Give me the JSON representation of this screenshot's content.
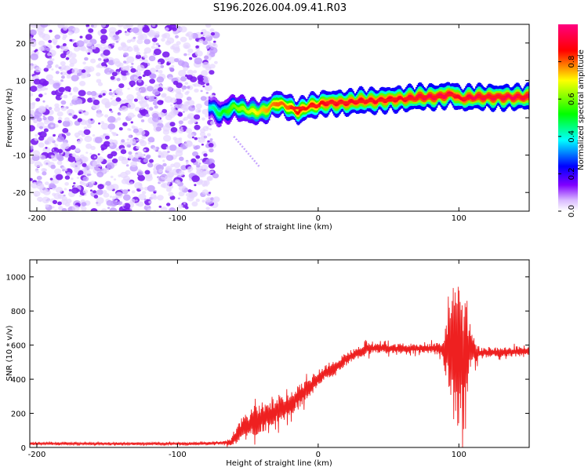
{
  "figure_title": "S196.2026.004.09.41.R03",
  "chart_data": [
    {
      "type": "heatmap",
      "title": "S196.2026.004.09.41.R03",
      "xlabel": "Height of straight line (km)",
      "ylabel": "Frequency (Hz)",
      "xlim": [
        -205,
        150
      ],
      "ylim": [
        -25,
        25
      ],
      "x_ticks": [
        -200,
        -100,
        0,
        100
      ],
      "y_ticks": [
        -20,
        -10,
        0,
        10,
        20
      ],
      "noise_region_x": [
        -205,
        -75
      ],
      "signal_track": {
        "x": [
          -78,
          -70,
          -60,
          -52,
          -45,
          -38,
          -30,
          -22,
          -15,
          -8,
          0,
          5,
          12,
          20,
          30,
          40,
          50,
          60,
          70,
          80,
          90,
          95,
          100,
          110,
          120,
          130,
          140,
          150
        ],
        "freq": [
          3,
          1,
          3,
          2,
          1.5,
          2,
          4,
          3,
          1.5,
          3,
          3.5,
          4,
          4,
          4,
          4.5,
          4.5,
          5,
          5,
          5.5,
          5.5,
          6,
          6.5,
          5,
          5.5,
          5.5,
          5.5,
          5.5,
          5.5
        ],
        "amplitude": [
          0.4,
          0.5,
          0.6,
          0.65,
          0.7,
          0.75,
          0.8,
          0.8,
          0.85,
          0.85,
          0.85,
          0.9,
          0.9,
          0.9,
          0.9,
          0.9,
          0.9,
          0.9,
          0.95,
          0.95,
          0.95,
          0.9,
          0.9,
          0.95,
          0.95,
          0.95,
          0.95,
          0.95
        ]
      },
      "ghost_branch": {
        "x": [
          -60,
          -42
        ],
        "freq": [
          -5,
          -13
        ]
      },
      "colorbar": {
        "label": "Normalized spectral amplitude",
        "range": [
          0,
          1
        ],
        "ticks": [
          0.0,
          0.2,
          0.4,
          0.6,
          0.8
        ],
        "tick_labels": [
          "0.0",
          "0.2",
          "0.4",
          "0.6",
          "0.8"
        ],
        "colors": [
          "#ffffff",
          "#8000ff",
          "#0000ff",
          "#00ffff",
          "#00ff00",
          "#ffff00",
          "#ff0000",
          "#ff0080"
        ]
      }
    },
    {
      "type": "line",
      "xlabel": "Height of straight line (km)",
      "ylabel": "SNR (10 * v/v)",
      "xlim": [
        -205,
        150
      ],
      "ylim": [
        0,
        1100
      ],
      "x_ticks": [
        -200,
        -100,
        0,
        100
      ],
      "y_ticks": [
        0,
        200,
        400,
        600,
        800,
        1000
      ],
      "line_color": "#ee2020",
      "series": [
        {
          "name": "SNR",
          "x": [
            -205,
            -180,
            -150,
            -120,
            -90,
            -70,
            -62,
            -55,
            -45,
            -35,
            -25,
            -15,
            -5,
            0,
            10,
            20,
            30,
            35,
            40,
            60,
            80,
            88,
            92,
            96,
            100,
            104,
            108,
            115,
            130,
            150
          ],
          "y": [
            22,
            22,
            22,
            22,
            22,
            25,
            30,
            100,
            160,
            190,
            230,
            290,
            360,
            410,
            460,
            520,
            560,
            580,
            580,
            580,
            580,
            580,
            550,
            570,
            600,
            560,
            560,
            555,
            560,
            565
          ],
          "noise_amp": [
            8,
            8,
            8,
            8,
            8,
            8,
            20,
            70,
            90,
            90,
            80,
            70,
            60,
            50,
            40,
            40,
            35,
            40,
            30,
            30,
            30,
            50,
            200,
            420,
            480,
            330,
            120,
            30,
            30,
            30
          ]
        }
      ]
    }
  ]
}
